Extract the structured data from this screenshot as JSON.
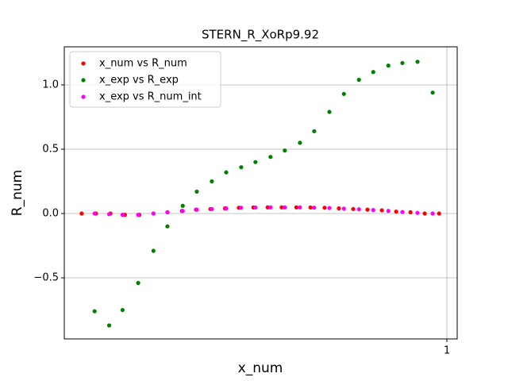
{
  "chart_data": {
    "type": "scatter",
    "title": "STERN_R_XoRp9.92",
    "xlabel": "x_num",
    "ylabel": "R_num",
    "ylabel_color": "#ff0000",
    "xscale": "log",
    "xlim": [
      0.1,
      1.064
    ],
    "ylim": [
      -0.975,
      1.296
    ],
    "xticks": [
      1
    ],
    "yticks": [
      {
        "value": -0.5,
        "label": "−0.5"
      },
      {
        "value": 0,
        "label": "0.0"
      },
      {
        "value": 0.5,
        "label": "0.5"
      },
      {
        "value": 1,
        "label": "1.0"
      }
    ],
    "grid": true,
    "legend": "upper-left",
    "series": [
      {
        "name": "x_num vs R_num",
        "color": "#ff0000",
        "x": [
          0.111,
          0.121,
          0.132,
          0.144,
          0.157,
          0.171,
          0.186,
          0.203,
          0.221,
          0.241,
          0.263,
          0.286,
          0.312,
          0.34,
          0.37,
          0.404,
          0.44,
          0.479,
          0.522,
          0.569,
          0.62,
          0.676,
          0.737,
          0.803,
          0.875,
          0.954
        ],
        "values": [
          0,
          0,
          0,
          -0.01,
          -0.01,
          0,
          0.01,
          0.02,
          0.03,
          0.035,
          0.04,
          0.045,
          0.047,
          0.048,
          0.048,
          0.048,
          0.047,
          0.045,
          0.04,
          0.035,
          0.03,
          0.025,
          0.015,
          0.01,
          0,
          0
        ]
      },
      {
        "name": "x_exp vs R_exp",
        "color": "#008000",
        "x": [
          0.12,
          0.131,
          0.142,
          0.156,
          0.171,
          0.186,
          0.204,
          0.222,
          0.243,
          0.265,
          0.29,
          0.316,
          0.346,
          0.377,
          0.413,
          0.45,
          0.493,
          0.538,
          0.589,
          0.642,
          0.703,
          0.765,
          0.838,
          0.918
        ],
        "values": [
          -0.76,
          -0.87,
          -0.75,
          -0.54,
          -0.29,
          -0.1,
          0.06,
          0.17,
          0.25,
          0.32,
          0.36,
          0.4,
          0.44,
          0.49,
          0.55,
          0.64,
          0.79,
          0.93,
          1.04,
          1.1,
          1.15,
          1.17,
          1.18,
          0.94
        ]
      },
      {
        "name": "x_exp vs R_num_int",
        "color": "#ff00ff",
        "x": [
          0.12,
          0.131,
          0.142,
          0.156,
          0.171,
          0.186,
          0.204,
          0.222,
          0.243,
          0.265,
          0.29,
          0.316,
          0.346,
          0.377,
          0.413,
          0.45,
          0.493,
          0.538,
          0.589,
          0.642,
          0.703,
          0.765,
          0.838,
          0.918
        ],
        "values": [
          0,
          -0.005,
          -0.01,
          -0.01,
          0,
          0.01,
          0.02,
          0.03,
          0.035,
          0.04,
          0.045,
          0.047,
          0.048,
          0.048,
          0.048,
          0.046,
          0.043,
          0.038,
          0.033,
          0.027,
          0.02,
          0.012,
          0.005,
          0
        ]
      }
    ]
  }
}
